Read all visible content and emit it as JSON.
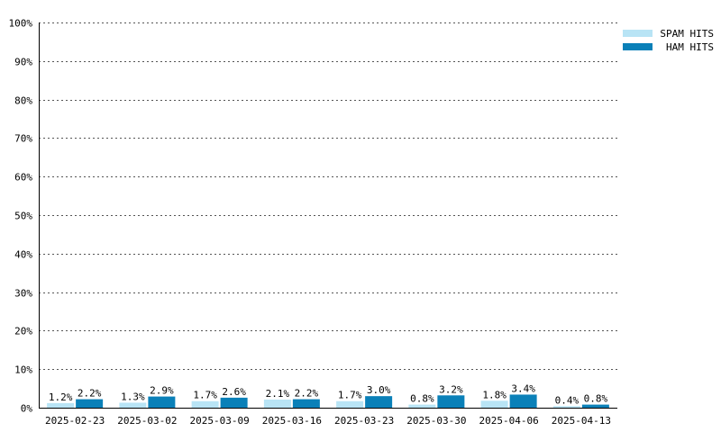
{
  "chart_data": {
    "type": "bar",
    "categories": [
      "2025-02-23",
      "2025-03-02",
      "2025-03-09",
      "2025-03-16",
      "2025-03-23",
      "2025-03-30",
      "2025-04-06",
      "2025-04-13"
    ],
    "series": [
      {
        "name": "SPAM HITS",
        "color": "#b8e4f5",
        "values": [
          1.2,
          1.3,
          1.7,
          2.1,
          1.7,
          0.8,
          1.8,
          0.4
        ],
        "labels": [
          "1.2%",
          "1.3%",
          "1.7%",
          "2.1%",
          "1.7%",
          "0.8%",
          "1.8%",
          "0.4%"
        ]
      },
      {
        "name": "HAM HITS",
        "color": "#0a80b8",
        "values": [
          2.2,
          2.9,
          2.6,
          2.2,
          3.0,
          3.2,
          3.4,
          0.8
        ],
        "labels": [
          "2.2%",
          "2.9%",
          "2.6%",
          "2.2%",
          "3.0%",
          "3.2%",
          "3.4%",
          "0.8%"
        ]
      }
    ],
    "y_ticks": [
      "0%",
      "10%",
      "20%",
      "30%",
      "40%",
      "50%",
      "60%",
      "70%",
      "80%",
      "90%",
      "100%"
    ],
    "ylim": [
      0,
      100
    ],
    "grid": true,
    "legend_position": "top-right"
  }
}
